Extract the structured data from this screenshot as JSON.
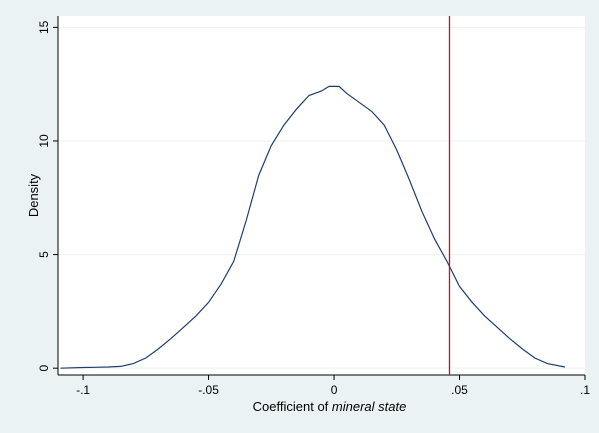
{
  "chart_data": {
    "type": "line",
    "title": "",
    "xlabel_prefix": "Coefficient of ",
    "xlabel_italic": "mineral state",
    "ylabel": "Density",
    "xlim": [
      -0.11,
      0.1
    ],
    "ylim": [
      -0.3,
      15.5
    ],
    "xticks": [
      {
        "value": -0.1,
        "label": "-.1"
      },
      {
        "value": -0.05,
        "label": "-.05"
      },
      {
        "value": 0,
        "label": "0"
      },
      {
        "value": 0.05,
        "label": ".05"
      },
      {
        "value": 0.1,
        "label": ".1"
      }
    ],
    "yticks": [
      {
        "value": 0,
        "label": "0"
      },
      {
        "value": 5,
        "label": "5"
      },
      {
        "value": 10,
        "label": "10"
      },
      {
        "value": 15,
        "label": "15"
      }
    ],
    "grid": "horizontal",
    "line_color": "#1f3e6e",
    "vline_color": "#c0102c",
    "vline_x": 0.046,
    "series": [
      {
        "x": [
          -0.109,
          -0.1,
          -0.095,
          -0.09,
          -0.085,
          -0.08,
          -0.075,
          -0.07,
          -0.065,
          -0.06,
          -0.055,
          -0.05,
          -0.045,
          -0.04,
          -0.035,
          -0.03,
          -0.025,
          -0.02,
          -0.015,
          -0.01,
          -0.005,
          -0.002,
          0.002,
          0.005,
          0.01,
          0.015,
          0.02,
          0.025,
          0.03,
          0.035,
          0.04,
          0.045,
          0.05,
          0.055,
          0.06,
          0.065,
          0.07,
          0.075,
          0.08,
          0.085,
          0.092
        ],
        "y": [
          0.0,
          0.03,
          0.04,
          0.05,
          0.08,
          0.2,
          0.45,
          0.85,
          1.3,
          1.8,
          2.3,
          2.9,
          3.7,
          4.7,
          6.5,
          8.5,
          9.8,
          10.7,
          11.4,
          12.0,
          12.2,
          12.4,
          12.4,
          12.1,
          11.7,
          11.3,
          10.7,
          9.6,
          8.3,
          6.9,
          5.7,
          4.7,
          3.6,
          2.9,
          2.3,
          1.8,
          1.3,
          0.85,
          0.45,
          0.2,
          0.05
        ]
      }
    ]
  }
}
